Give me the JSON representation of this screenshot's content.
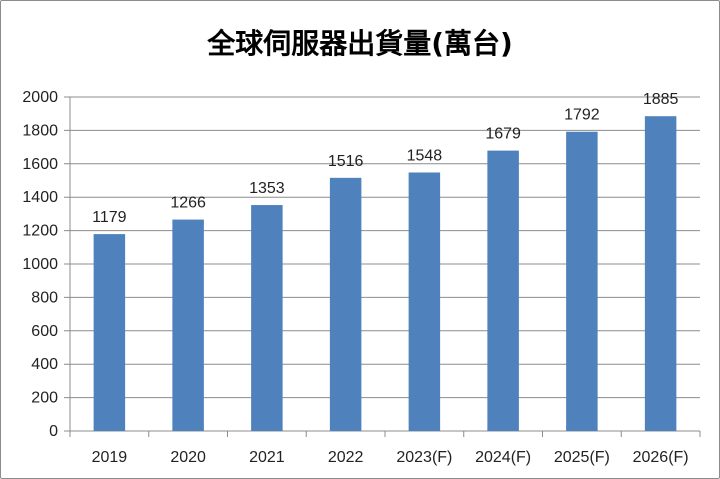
{
  "chart_data": {
    "type": "bar",
    "title": "全球伺服器出貨量(萬台)",
    "categories": [
      "2019",
      "2020",
      "2021",
      "2022",
      "2023(F)",
      "2024(F)",
      "2025(F)",
      "2026(F)"
    ],
    "values": [
      1179,
      1266,
      1353,
      1516,
      1548,
      1679,
      1792,
      1885
    ],
    "ylim": [
      0,
      2000
    ],
    "yticks": [
      0,
      200,
      400,
      600,
      800,
      1000,
      1200,
      1400,
      1600,
      1800,
      2000
    ],
    "grid": true,
    "bar_color": "#4f81bd",
    "grid_color": "#8c8c8c"
  }
}
